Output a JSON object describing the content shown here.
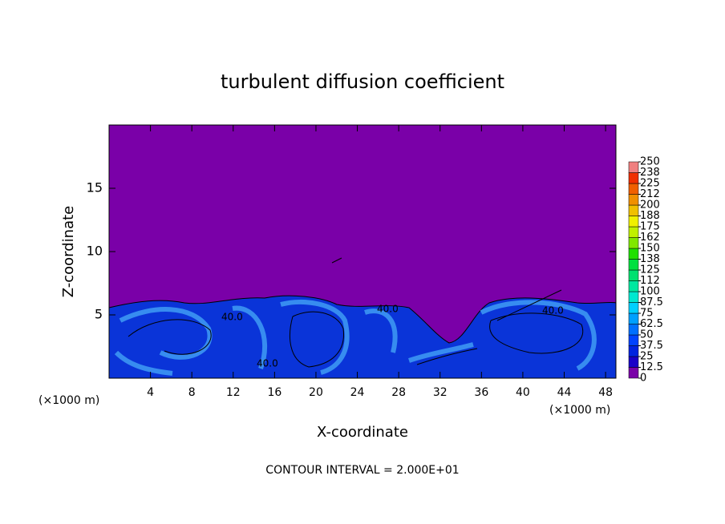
{
  "chart_data": {
    "type": "contour",
    "title": "turbulent diffusion coefficient",
    "x_label": "X-coordinate",
    "y_label": "Z-coordinate",
    "x_unit": "(×1000 m)",
    "x_unit_right": "(×1000 m)",
    "footnote": "CONTOUR INTERVAL = 2.000E+01",
    "contour_labels": [
      "40.0",
      "40.0",
      "40.0",
      "40.0"
    ],
    "xlim": [
      0,
      49
    ],
    "xticks": [
      4,
      8,
      12,
      16,
      20,
      24,
      28,
      32,
      36,
      40,
      44,
      48
    ],
    "ylim": [
      0,
      20
    ],
    "yticks": [
      5,
      10,
      15
    ],
    "colorbar": {
      "levels": [
        0,
        12.5,
        25,
        37.5,
        50,
        62.5,
        75,
        87.5,
        100,
        {
          "value": 112.5,
          "label": "112"
        },
        125,
        {
          "value": 137.5,
          "label": "138"
        },
        150,
        {
          "value": 162.5,
          "label": "162"
        },
        175,
        {
          "value": 187.5,
          "label": "188"
        },
        200,
        {
          "value": 212.5,
          "label": "212"
        },
        225,
        {
          "value": 237.5,
          "label": "238"
        },
        250
      ],
      "colors": [
        "#7a00a8",
        "#1a00c8",
        "#0024e0",
        "#0044ff",
        "#0070ff",
        "#00a0ff",
        "#00d0ff",
        "#00e8d0",
        "#00e8a0",
        "#00e070",
        "#00e040",
        "#20e000",
        "#80e800",
        "#c0f000",
        "#f0f000",
        "#f0c000",
        "#f09000",
        "#f06000",
        "#f03000",
        "#f08080"
      ]
    }
  }
}
